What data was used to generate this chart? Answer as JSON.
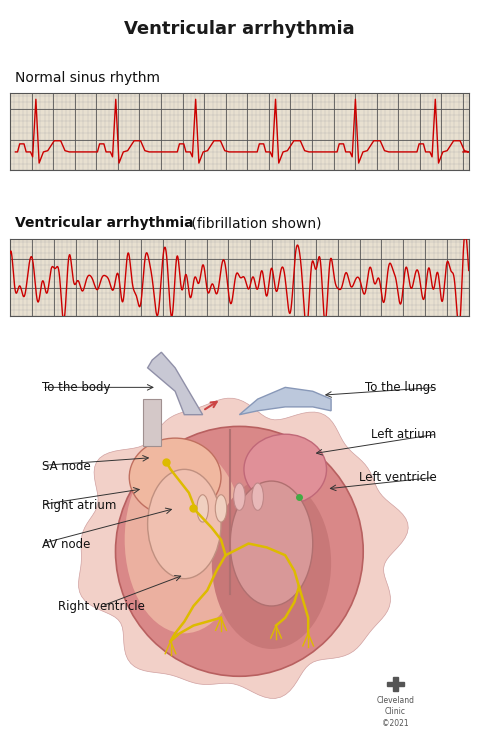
{
  "title": "Ventricular arrhythmia",
  "title_fontsize": 13,
  "title_fontweight": "bold",
  "ecg1_label": "Normal sinus rhythm",
  "ecg2_label_bold": "Ventricular arrhythmia",
  "ecg2_label_normal": " (fibrillation shown)",
  "ecg_line_color": "#cc0000",
  "ecg_grid_minor_color": "#aaaaaa",
  "ecg_grid_major_color": "#555555",
  "ecg_bg_color": "#e8e0d0",
  "background_color": "#ffffff",
  "label_fontsize": 8.5,
  "label_color": "#111111",
  "cleveland_clinic_text": "Cleveland\nClinic\n©2021",
  "heart_bg": "#ffffff",
  "heart_main_color": "#e8a0a0",
  "heart_edge_color": "#c06060",
  "conducting_color": "#ddbb00",
  "vessel_gray": "#c8c8d4",
  "vessel_edge": "#9090a8"
}
